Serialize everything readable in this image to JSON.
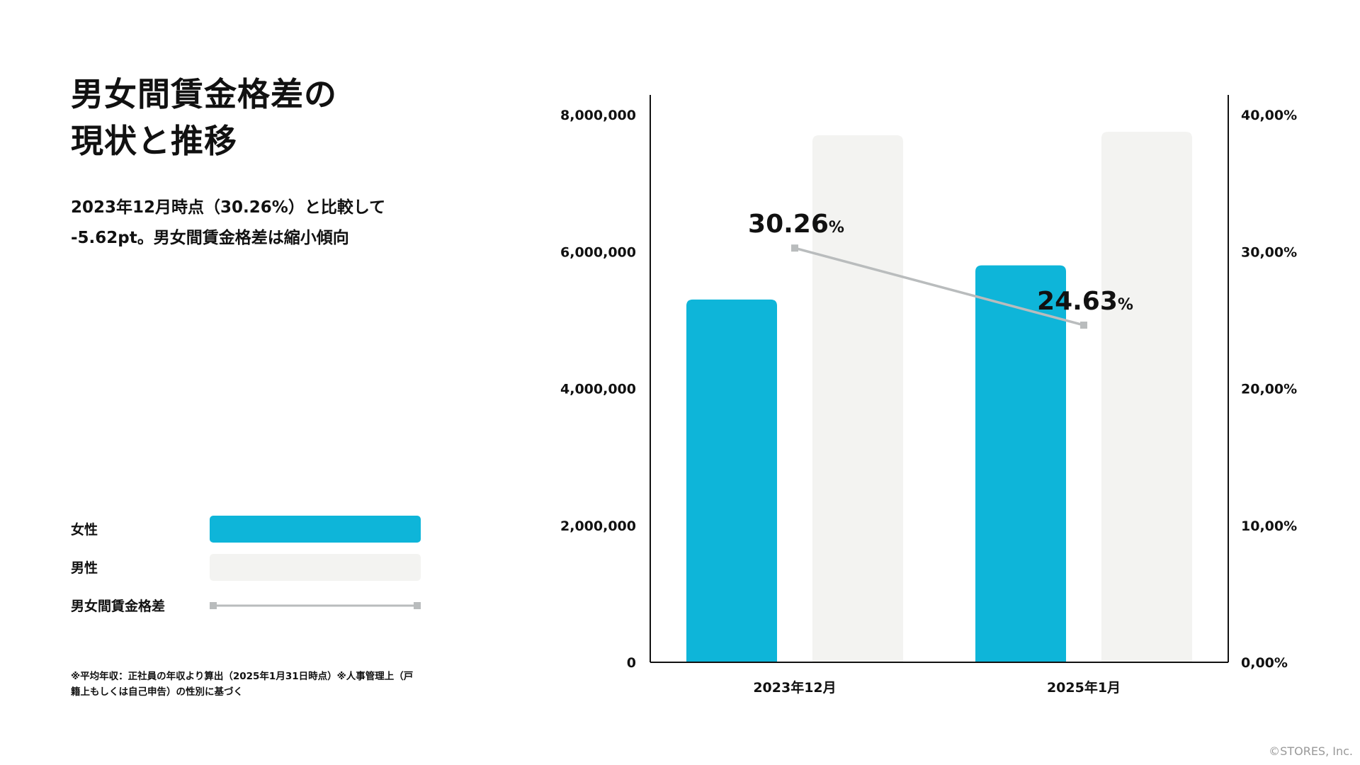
{
  "title": {
    "line1": "男女間賃金格差の",
    "line2": "現状と推移"
  },
  "subtitle": {
    "line1": "2023年12月時点（30.26%）と比較して",
    "line2": "-5.62pt。男女間賃金格差は縮小傾向"
  },
  "legend": [
    {
      "label": "女性",
      "type": "bar",
      "color": "#0eb5d9"
    },
    {
      "label": "男性",
      "type": "bar",
      "color": "#f3f3f1"
    },
    {
      "label": "男女間賃金格差",
      "type": "line",
      "color": "#b9bcbd"
    }
  ],
  "note": {
    "line1": "※平均年収：正社員の年収より算出（2025年1月31日時点）※人事管理上（戸",
    "line2": "籍上もしくは自己申告）の性別に基づく"
  },
  "copyright": "©STORES, Inc.",
  "chart_data": {
    "type": "bar",
    "categories": [
      "2023年12月",
      "2025年1月"
    ],
    "series": [
      {
        "name": "女性",
        "type": "bar",
        "axis": "left",
        "color": "#0eb5d9",
        "values": [
          5300000,
          5800000
        ]
      },
      {
        "name": "男性",
        "type": "bar",
        "axis": "left",
        "color": "#f3f3f1",
        "values": [
          7700000,
          7750000
        ]
      },
      {
        "name": "男女間賃金格差",
        "type": "line",
        "axis": "right",
        "color": "#b9bcbd",
        "values": [
          30.26,
          24.63
        ],
        "labels": [
          "30.26",
          "24.63"
        ],
        "label_unit": "%"
      }
    ],
    "y_left": {
      "ylim": [
        0,
        8000000
      ],
      "ticks": [
        0,
        2000000,
        4000000,
        6000000,
        8000000
      ],
      "tick_labels": [
        "0",
        "2,000,000",
        "4,000,000",
        "6,000,000",
        "8,000,000"
      ]
    },
    "y_right": {
      "ylim": [
        0,
        40
      ],
      "ticks": [
        0,
        10,
        20,
        30,
        40
      ],
      "tick_labels": [
        "0,00%",
        "10,00%",
        "20,00%",
        "30,00%",
        "40,00%"
      ]
    },
    "grid": false
  }
}
